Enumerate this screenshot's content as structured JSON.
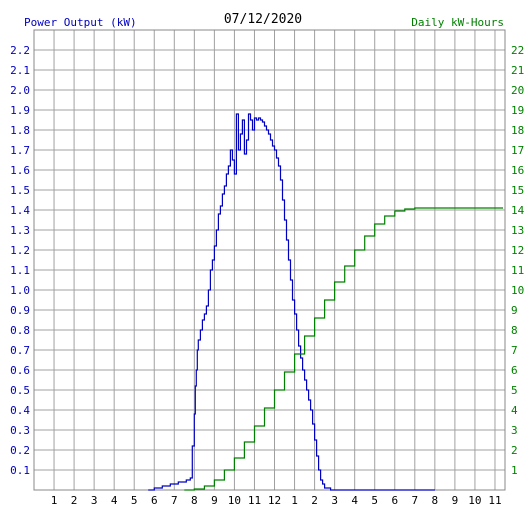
{
  "chart_data": {
    "type": "line",
    "title": "07/12/2020",
    "ylabel_left": "Power Output (kW)",
    "ylabel_right": "Daily kW-Hours",
    "x_tick_labels": [
      "1",
      "2",
      "3",
      "4",
      "5",
      "6",
      "7",
      "8",
      "9",
      "10",
      "11",
      "12",
      "1",
      "2",
      "3",
      "4",
      "5",
      "6",
      "7",
      "8",
      "9",
      "10",
      "11"
    ],
    "xlim": [
      0,
      23.5
    ],
    "ylim_left": [
      0,
      2.3
    ],
    "ylim_right": [
      0,
      23
    ],
    "y_ticks_left": [
      "0.1",
      "0.2",
      "0.3",
      "0.4",
      "0.5",
      "0.6",
      "0.7",
      "0.8",
      "0.9",
      "1.0",
      "1.1",
      "1.2",
      "1.3",
      "1.4",
      "1.5",
      "1.6",
      "1.7",
      "1.8",
      "1.9",
      "2.0",
      "2.1",
      "2.2"
    ],
    "y_ticks_right": [
      "1",
      "2",
      "3",
      "4",
      "5",
      "6",
      "7",
      "8",
      "9",
      "10",
      "11",
      "12",
      "13",
      "14",
      "15",
      "16",
      "17",
      "18",
      "19",
      "20",
      "21",
      "22"
    ],
    "grid": true,
    "series": [
      {
        "name": "Power Output (kW)",
        "color": "#0000c0",
        "axis": "left",
        "step": true,
        "x": [
          5.7,
          6.0,
          6.4,
          6.8,
          7.2,
          7.6,
          7.8,
          7.9,
          8.0,
          8.05,
          8.1,
          8.15,
          8.2,
          8.3,
          8.4,
          8.5,
          8.6,
          8.7,
          8.8,
          8.9,
          9.0,
          9.1,
          9.2,
          9.3,
          9.4,
          9.5,
          9.6,
          9.7,
          9.8,
          9.9,
          10.0,
          10.1,
          10.2,
          10.3,
          10.4,
          10.5,
          10.6,
          10.7,
          10.8,
          10.9,
          11.0,
          11.1,
          11.2,
          11.3,
          11.4,
          11.5,
          11.6,
          11.7,
          11.8,
          11.9,
          12.0,
          12.1,
          12.2,
          12.3,
          12.4,
          12.5,
          12.6,
          12.7,
          12.8,
          12.9,
          13.0,
          13.1,
          13.2,
          13.3,
          13.4,
          13.5,
          13.6,
          13.7,
          13.8,
          13.9,
          14.0,
          14.1,
          14.2,
          14.3,
          14.4,
          14.5,
          14.6,
          14.7,
          14.8,
          14.9,
          15.0,
          15.1,
          15.2,
          15.3,
          15.4,
          15.5,
          15.6,
          15.7,
          15.8,
          15.9,
          16.0,
          16.1,
          16.2,
          16.3,
          16.4,
          16.5,
          16.6,
          16.7,
          16.8,
          16.9,
          17.0,
          17.1,
          17.2,
          17.3,
          17.4,
          17.5,
          17.6,
          17.7,
          17.8,
          17.9,
          18.0,
          18.2,
          18.5,
          18.8,
          19.0,
          19.3,
          19.6,
          20.0
        ],
        "values": [
          0.0,
          0.01,
          0.02,
          0.03,
          0.04,
          0.05,
          0.06,
          0.22,
          0.38,
          0.52,
          0.6,
          0.7,
          0.75,
          0.8,
          0.85,
          0.88,
          0.92,
          1.0,
          1.1,
          1.15,
          1.22,
          1.3,
          1.38,
          1.42,
          1.48,
          1.52,
          1.58,
          1.62,
          1.7,
          1.65,
          1.58,
          1.88,
          1.7,
          1.78,
          1.85,
          1.68,
          1.75,
          1.88,
          1.85,
          1.8,
          1.86,
          1.85,
          1.86,
          1.85,
          1.84,
          1.82,
          1.8,
          1.78,
          1.75,
          1.72,
          1.7,
          1.66,
          1.62,
          1.55,
          1.45,
          1.35,
          1.25,
          1.15,
          1.05,
          0.95,
          0.88,
          0.8,
          0.72,
          0.66,
          0.6,
          0.55,
          0.5,
          0.45,
          0.4,
          0.33,
          0.25,
          0.17,
          0.1,
          0.05,
          0.03,
          0.01,
          0.01,
          0.01,
          0.0,
          0.0,
          0.0,
          0.0,
          0.0,
          0.0,
          0.0,
          0.0,
          0.0,
          0.0,
          0.0,
          0.0,
          0.0,
          0.0,
          0.0,
          0.0,
          0.0,
          0.0,
          0.0,
          0.0,
          0.0,
          0.0,
          0.0,
          0.0,
          0.0,
          0.0,
          0.0,
          0.0,
          0.0,
          0.0,
          0.0,
          0.0,
          0.0,
          0.0,
          0.0,
          0.0,
          0.0,
          0.0,
          0.0,
          0.0
        ]
      },
      {
        "name": "Daily kW-Hours",
        "color": "#008000",
        "axis": "right",
        "step": true,
        "x": [
          7.5,
          8.0,
          8.5,
          9.0,
          9.5,
          10.0,
          10.5,
          11.0,
          11.5,
          12.0,
          12.5,
          13.0,
          13.5,
          14.0,
          14.5,
          15.0,
          15.5,
          16.0,
          16.5,
          17.0,
          17.5,
          18.0,
          18.5,
          19.0,
          19.5,
          20.0,
          20.5,
          21.0,
          21.5,
          22.0,
          22.5,
          23.0,
          23.4
        ],
        "values": [
          0.0,
          0.05,
          0.2,
          0.5,
          1.0,
          1.6,
          2.4,
          3.2,
          4.1,
          5.0,
          5.9,
          6.8,
          7.7,
          8.6,
          9.5,
          10.4,
          11.2,
          12.0,
          12.7,
          13.3,
          13.7,
          13.95,
          14.05,
          14.1,
          14.1,
          14.1,
          14.1,
          14.1,
          14.1,
          14.1,
          14.1,
          14.1,
          14.1
        ]
      }
    ]
  }
}
